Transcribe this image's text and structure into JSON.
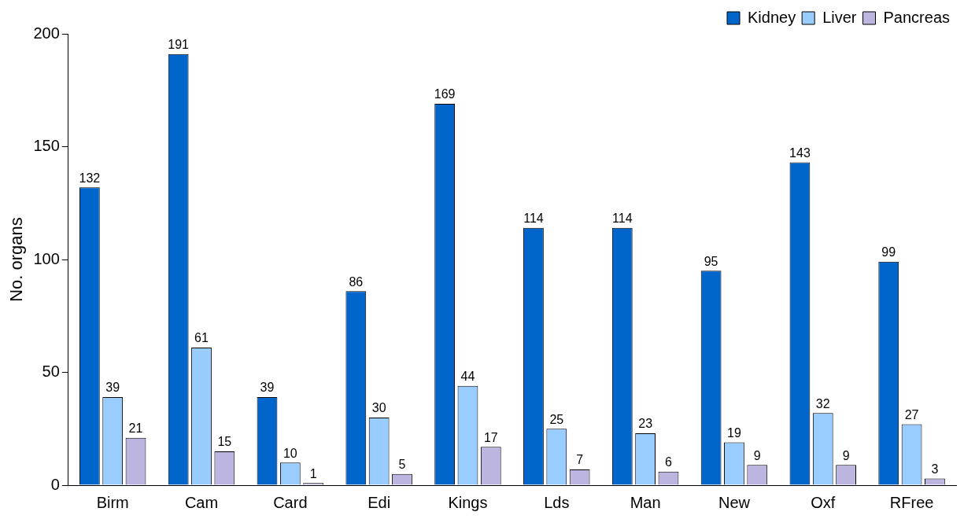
{
  "chart_data": {
    "type": "bar",
    "ylabel": "No. organs",
    "categories": [
      "Birm",
      "Cam",
      "Card",
      "Edi",
      "Kings",
      "Lds",
      "Man",
      "New",
      "Oxf",
      "RFree"
    ],
    "series": [
      {
        "name": "Kidney",
        "color": "#0066cc",
        "values": [
          132,
          191,
          39,
          86,
          169,
          114,
          114,
          95,
          143,
          99
        ]
      },
      {
        "name": "Liver",
        "color": "#99ccff",
        "values": [
          39,
          61,
          10,
          30,
          44,
          25,
          23,
          19,
          32,
          27
        ]
      },
      {
        "name": "Pancreas",
        "color": "#bbb5e0",
        "values": [
          21,
          15,
          1,
          5,
          17,
          7,
          6,
          9,
          9,
          3
        ]
      }
    ],
    "ylim": [
      0,
      200
    ],
    "yticks": [
      0,
      50,
      100,
      150,
      200
    ],
    "grid": false,
    "legend": "top right",
    "data_labels": true
  }
}
